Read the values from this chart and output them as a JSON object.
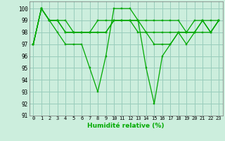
{
  "xlabel": "Humidité relative (%)",
  "background_color": "#cceedd",
  "grid_color": "#99ccbb",
  "line_color": "#00aa00",
  "xlim": [
    -0.5,
    23.5
  ],
  "ylim": [
    91,
    100.6
  ],
  "yticks": [
    91,
    92,
    93,
    94,
    95,
    96,
    97,
    98,
    99,
    100
  ],
  "xticks": [
    0,
    1,
    2,
    3,
    4,
    5,
    6,
    7,
    8,
    9,
    10,
    11,
    12,
    13,
    14,
    15,
    16,
    17,
    18,
    19,
    20,
    21,
    22,
    23
  ],
  "xtick_labels": [
    "0",
    "1",
    "2",
    "3",
    "4",
    "5",
    "6",
    "7",
    "8",
    "9",
    "10",
    "11",
    "12",
    "13",
    "14",
    "15",
    "16",
    "17",
    "18",
    "19",
    "20",
    "21",
    "22",
    "23"
  ],
  "series": [
    [
      97,
      100,
      99,
      98,
      97,
      97,
      97,
      95,
      93,
      96,
      100,
      100,
      100,
      99,
      95,
      92,
      96,
      97,
      98,
      97,
      98,
      99,
      98,
      99
    ],
    [
      97,
      100,
      99,
      99,
      98,
      98,
      98,
      98,
      98,
      98,
      99,
      99,
      99,
      99,
      98,
      98,
      98,
      98,
      98,
      98,
      98,
      99,
      98,
      99
    ],
    [
      97,
      100,
      99,
      99,
      98,
      98,
      98,
      98,
      98,
      98,
      99,
      99,
      99,
      98,
      98,
      97,
      97,
      97,
      98,
      98,
      98,
      98,
      98,
      99
    ],
    [
      97,
      100,
      99,
      99,
      99,
      98,
      98,
      98,
      99,
      99,
      99,
      99,
      99,
      99,
      99,
      99,
      99,
      99,
      99,
      98,
      99,
      99,
      99,
      99
    ]
  ]
}
